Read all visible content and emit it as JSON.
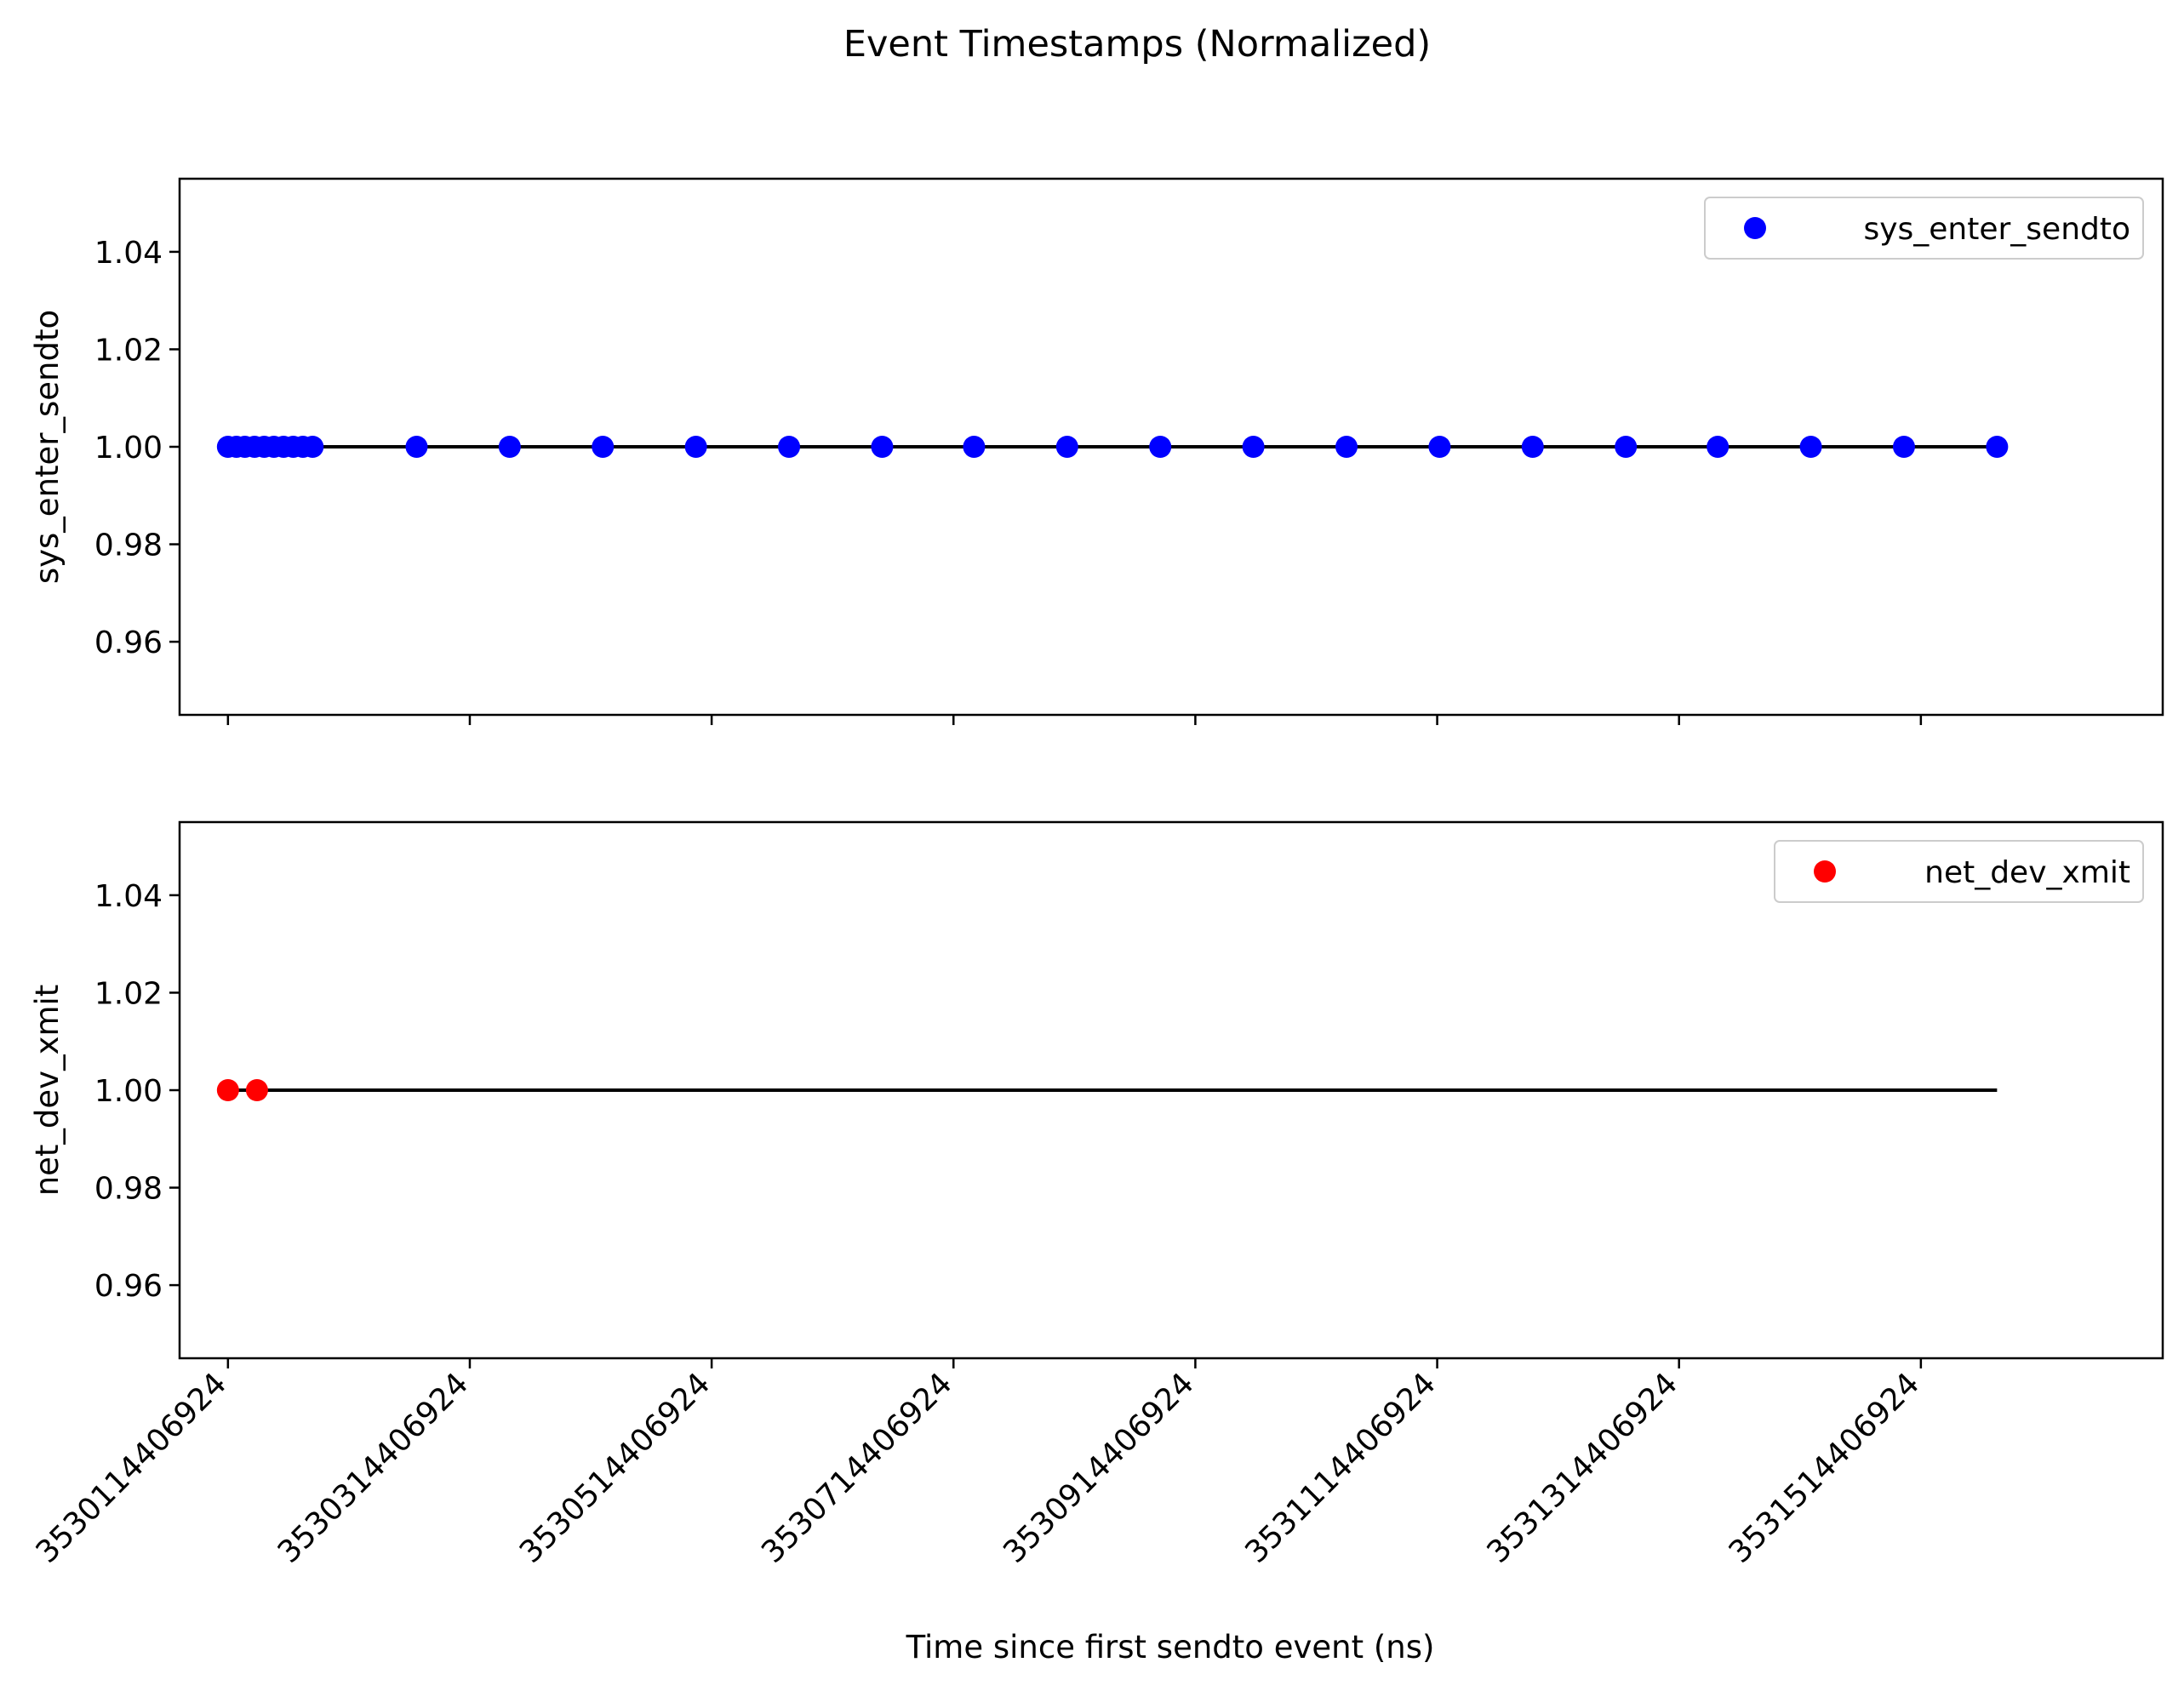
{
  "figure_title": "Event Timestamps (Normalized)",
  "chart_data": {
    "type": "scatter",
    "title": "Event Timestamps (Normalized)",
    "xlabel": "Time since first sendto event (ns)",
    "x_scale": "linear",
    "xlim": [
      3530074406924,
      3531714406924
    ],
    "x_ticks": [
      3530114406924,
      3530314406924,
      3530514406924,
      3530714406924,
      3530914406924,
      3531114406924,
      3531314406924,
      3531514406924
    ],
    "x_tick_labels": [
      "3530114406924",
      "3530314406924",
      "3530514406924",
      "3530714406924",
      "3530914406924",
      "3531114406924",
      "3531314406924",
      "3531514406924"
    ],
    "shared_x": true,
    "panels": [
      {
        "ylabel": "sys_enter_sendto",
        "ylim": [
          0.945,
          1.055
        ],
        "y_ticks": [
          0.96,
          0.98,
          1.0,
          1.02,
          1.04
        ],
        "y_tick_labels": [
          "0.96",
          "0.98",
          "1.00",
          "1.02",
          "1.04"
        ],
        "legend_position": "top-right",
        "grid": false,
        "series": [
          {
            "name": "sys_enter_sendto",
            "color": "#0000ff",
            "marker": "circle",
            "x": [
              3530114406924,
              3530121406924,
              3530128406924,
              3530136406924,
              3530144406924,
              3530152406924,
              3530160406924,
              3530168406924,
              3530176406924,
              3530184406924,
              3530270406924,
              3530347406924,
              3530424406924,
              3530501406924,
              3530578406924,
              3530655406924,
              3530731406924,
              3530808406924,
              3530885406924,
              3530962406924,
              3531039406924,
              3531116406924,
              3531193406924,
              3531270406924,
              3531346406924,
              3531423406924,
              3531500406924,
              3531577406924
            ],
            "y": [
              1.0,
              1.0,
              1.0,
              1.0,
              1.0,
              1.0,
              1.0,
              1.0,
              1.0,
              1.0,
              1.0,
              1.0,
              1.0,
              1.0,
              1.0,
              1.0,
              1.0,
              1.0,
              1.0,
              1.0,
              1.0,
              1.0,
              1.0,
              1.0,
              1.0,
              1.0,
              1.0,
              1.0
            ]
          }
        ],
        "reference_line": {
          "y": 1.0,
          "x_range": [
            3530114406924,
            3531577406924
          ],
          "color": "#000000"
        }
      },
      {
        "ylabel": "net_dev_xmit",
        "ylim": [
          0.945,
          1.055
        ],
        "y_ticks": [
          0.96,
          0.98,
          1.0,
          1.02,
          1.04
        ],
        "y_tick_labels": [
          "0.96",
          "0.98",
          "1.00",
          "1.02",
          "1.04"
        ],
        "legend_position": "top-right",
        "grid": false,
        "series": [
          {
            "name": "net_dev_xmit",
            "color": "#ff0000",
            "marker": "circle",
            "x": [
              3530114406924,
              3530138406924
            ],
            "y": [
              1.0,
              1.0
            ]
          }
        ],
        "reference_line": {
          "y": 1.0,
          "x_range": [
            3530114406924,
            3531577406924
          ],
          "color": "#000000"
        }
      }
    ]
  }
}
